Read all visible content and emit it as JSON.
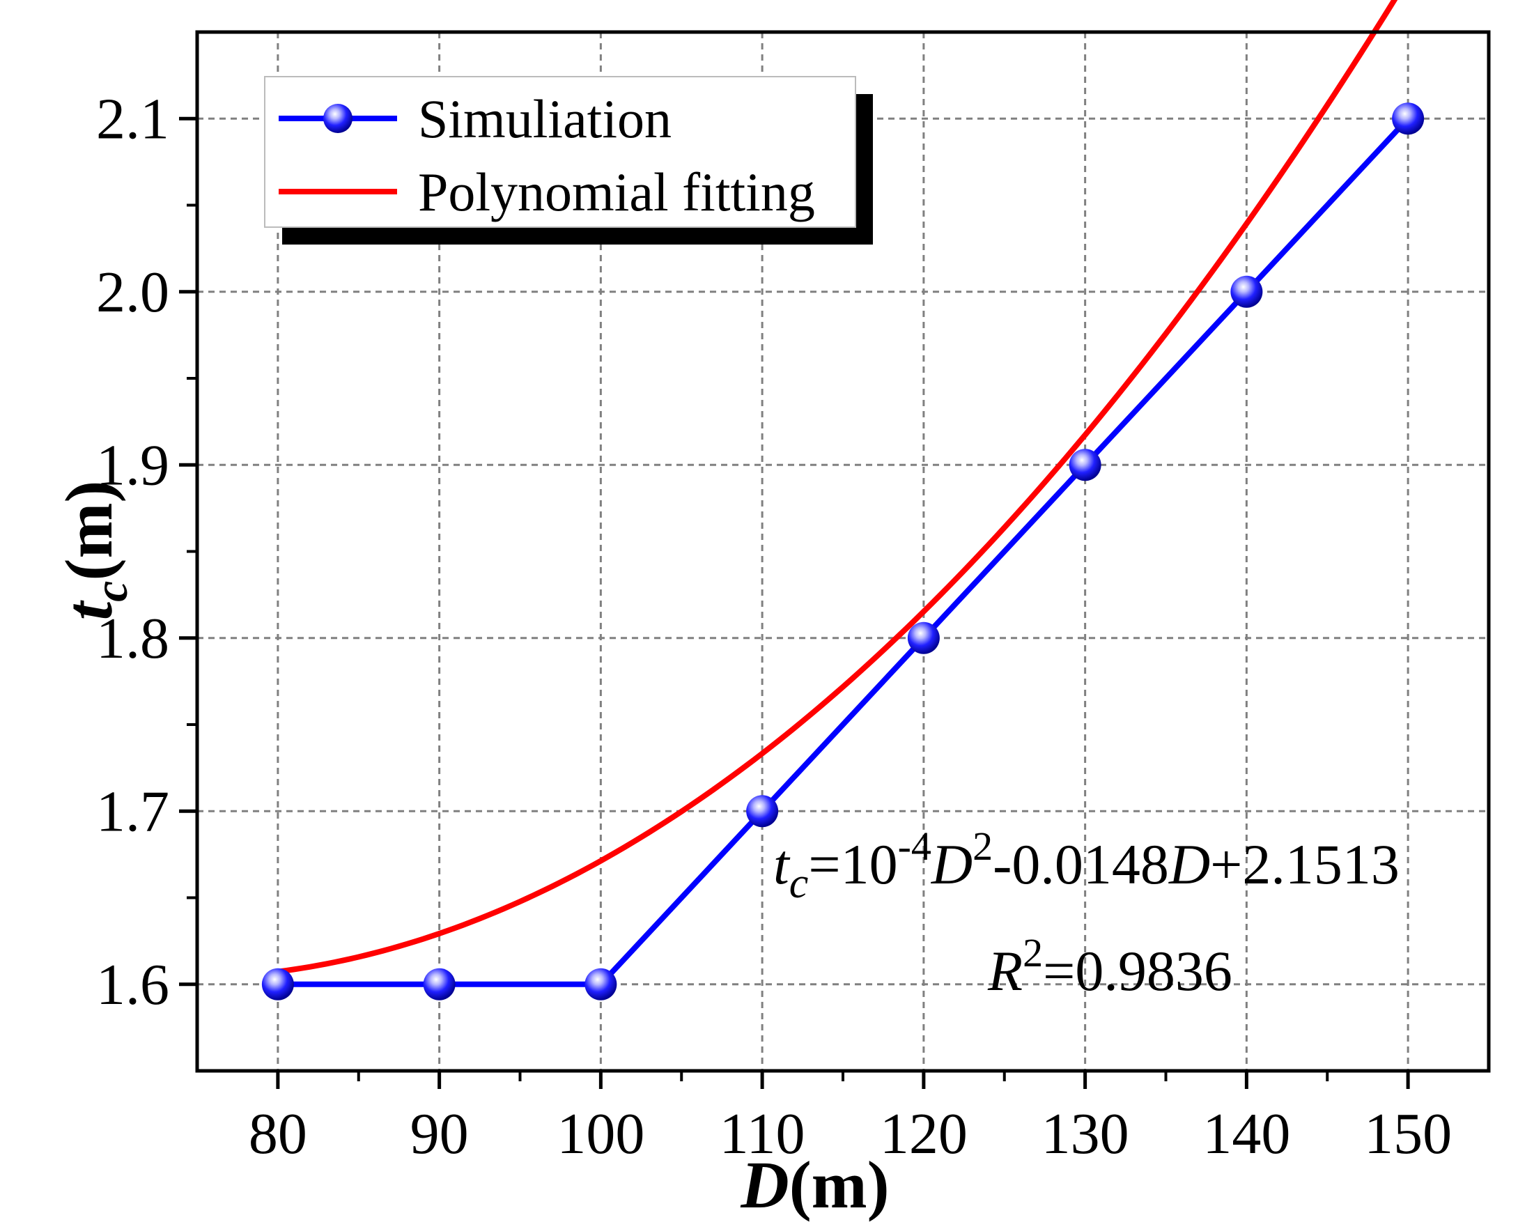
{
  "chart_data": {
    "type": "line",
    "x": [
      80,
      90,
      100,
      110,
      120,
      130,
      140,
      150
    ],
    "xlim": [
      75,
      155
    ],
    "ylim": [
      1.55,
      2.15
    ],
    "xticks": [
      80,
      90,
      100,
      110,
      120,
      130,
      140,
      150
    ],
    "yticks": [
      1.6,
      1.7,
      1.8,
      1.9,
      2.0,
      2.1
    ],
    "xtick_labels": [
      "80",
      "90",
      "100",
      "110",
      "120",
      "130",
      "140",
      "150"
    ],
    "ytick_labels": [
      "1.6",
      "1.7",
      "1.8",
      "1.9",
      "2.0",
      "2.1"
    ],
    "grid": true,
    "series": [
      {
        "name": "Simuliation",
        "style": "line+markers",
        "color": "#0000ff",
        "values": [
          1.6,
          1.6,
          1.6,
          1.7,
          1.8,
          1.9,
          2.0,
          2.1
        ]
      },
      {
        "name": "Polynomial fitting",
        "style": "line",
        "color": "#ff0000",
        "coefficients": {
          "a": 0.0001,
          "b": -0.0148,
          "c": 2.1513
        },
        "x_range": [
          80,
          150
        ]
      }
    ],
    "xlabel": {
      "main": "D",
      "unit": "(m)"
    },
    "ylabel": {
      "main": "t",
      "sub": "c",
      "unit": "(m)"
    },
    "legend_position": "top-left",
    "annotations": {
      "equation": {
        "t": "t",
        "c": "c",
        "eq1": "=10",
        "exp1": "-4",
        "D1": "D",
        "exp2": "2",
        "mid": "-0.0148",
        "D2": "D",
        "tail": "+2.1513"
      },
      "r2": {
        "R": "R",
        "exp": "2",
        "value": "=0.9836"
      }
    }
  }
}
